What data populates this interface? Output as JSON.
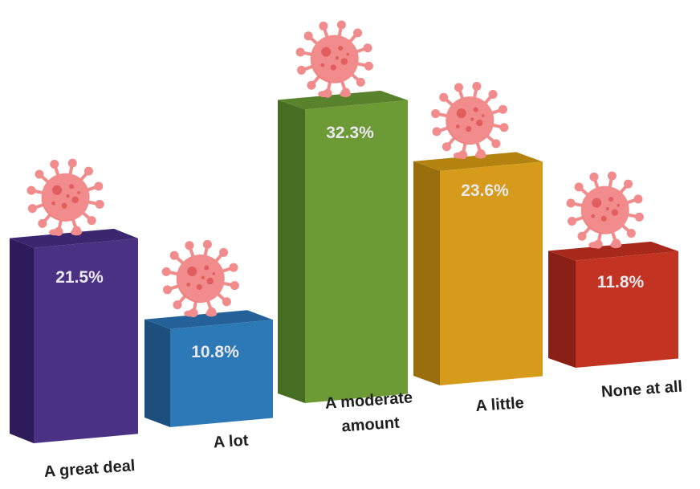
{
  "chart_data": {
    "type": "bar",
    "style": "3d-perspective-bars-with-virus-illustrations",
    "categories": [
      "A great deal",
      "A lot",
      "A moderate amount",
      "A little",
      "None at all"
    ],
    "values": [
      21.5,
      10.8,
      32.3,
      23.6,
      11.8
    ],
    "value_labels": [
      "21.5%",
      "10.8%",
      "32.3%",
      "23.6%",
      "11.8%"
    ],
    "category_label_lines": [
      [
        "A great deal"
      ],
      [
        "A lot"
      ],
      [
        "A moderate",
        "amount"
      ],
      [
        "A little"
      ],
      [
        "None at all"
      ]
    ],
    "unit": "%",
    "colors": {
      "bars": [
        "#4a3183",
        "#2d79b8",
        "#6c9a35",
        "#d79b1b",
        "#c23322"
      ],
      "bar_sides": [
        "#2e1c5a",
        "#1d4f7c",
        "#466e22",
        "#9a6d0d",
        "#8a1f15"
      ],
      "bar_tops": [
        "#3b2670",
        "#236198",
        "#58822b",
        "#b3820f",
        "#a8281b"
      ],
      "virus_body": "#f28b8b",
      "virus_spots": "#e25d5d",
      "value_text": "#e9e9ee"
    },
    "icon": "virus-icon",
    "title": "",
    "xlabel": "",
    "ylabel": "",
    "grid": false,
    "legend": "none"
  }
}
